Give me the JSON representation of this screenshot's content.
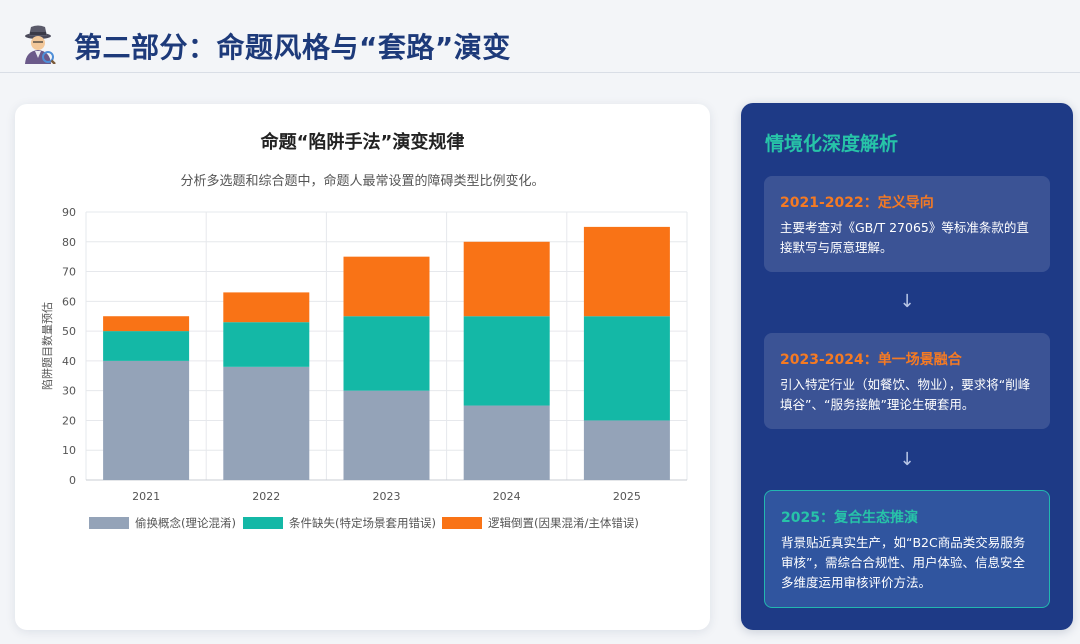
{
  "header": {
    "icon": "detective-icon",
    "title": "第二部分：命题风格与“套路”演变"
  },
  "chart_card": {
    "title": "命题“陷阱手法”演变规律",
    "subtitle": "分析多选题和综合题中，命题人最常设置的障碍类型比例变化。"
  },
  "chart_data": {
    "type": "bar",
    "stacked": true,
    "categories": [
      "2021",
      "2022",
      "2023",
      "2024",
      "2025"
    ],
    "series": [
      {
        "name": "偷换概念(理论混淆)",
        "color": "#94a3b8",
        "values": [
          40,
          38,
          30,
          25,
          20
        ]
      },
      {
        "name": "条件缺失(特定场景套用错误)",
        "color": "#14b8a6",
        "values": [
          10,
          15,
          25,
          30,
          35
        ]
      },
      {
        "name": "逻辑倒置(因果混淆/主体错误)",
        "color": "#f97316",
        "values": [
          5,
          10,
          20,
          25,
          30
        ]
      }
    ],
    "ylabel": "陷阱题目数量预估",
    "xlabel": "",
    "ylim": [
      0,
      90
    ],
    "yticks": [
      0,
      10,
      20,
      30,
      40,
      50,
      60,
      70,
      80,
      90
    ],
    "grid": true,
    "legend": "bottom"
  },
  "side": {
    "title": "情境化深度解析",
    "arrow": "↓",
    "boxes": [
      {
        "title": "2021-2022：定义导向",
        "text": "主要考查对《GB/T 27065》等标准条款的直接默写与原意理解。"
      },
      {
        "title": "2023-2024：单一场景融合",
        "text": "引入特定行业（如餐饮、物业），要求将“削峰填谷”、“服务接触”理论生硬套用。"
      },
      {
        "title": "2025：复合生态推演",
        "text": "背景贴近真实生产，如“B2C商品类交易服务审核”，需综合合规性、用户体验、信息安全多维度运用审核评价方法。"
      }
    ]
  }
}
